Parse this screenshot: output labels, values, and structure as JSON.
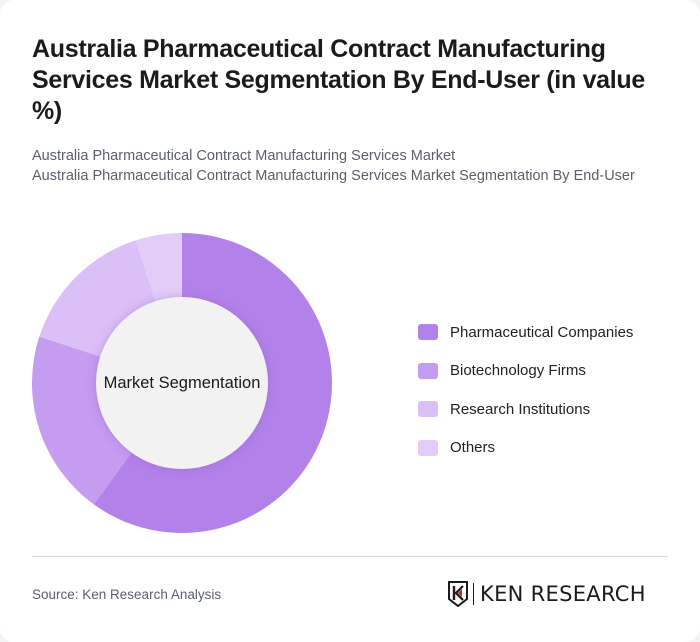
{
  "header": {
    "title": "Australia Pharmaceutical Contract Manufacturing Services Market Segmentation By End-User (in value %)",
    "subtitle_line1": "Australia Pharmaceutical Contract Manufacturing Services Market",
    "subtitle_line2": "Australia Pharmaceutical Contract Manufacturing Services Market Segmentation By End-User"
  },
  "chart": {
    "center_label": "Market Segmentation"
  },
  "legend": {
    "items": [
      {
        "label": "Pharmaceutical Companies",
        "color": "#b381ea"
      },
      {
        "label": "Biotechnology Firms",
        "color": "#c59cef"
      },
      {
        "label": "Research Institutions",
        "color": "#dbc0f7"
      },
      {
        "label": "Others",
        "color": "#e3cdf8"
      }
    ]
  },
  "footer": {
    "source": "Source: Ken Research Analysis",
    "logo_text": "KEN RESEARCH"
  },
  "chart_data": {
    "type": "pie",
    "subtype": "donut",
    "title": "Australia Pharmaceutical Contract Manufacturing Services Market Segmentation By End-User (in value %)",
    "center_label": "Market Segmentation",
    "categories": [
      "Pharmaceutical Companies",
      "Biotechnology Firms",
      "Research Institutions",
      "Others"
    ],
    "values": [
      60,
      20,
      15,
      5
    ],
    "colors": [
      "#b381ea",
      "#c59cef",
      "#dbc0f7",
      "#e3cdf8"
    ],
    "legend_position": "right",
    "start_angle": "top, clockwise"
  }
}
